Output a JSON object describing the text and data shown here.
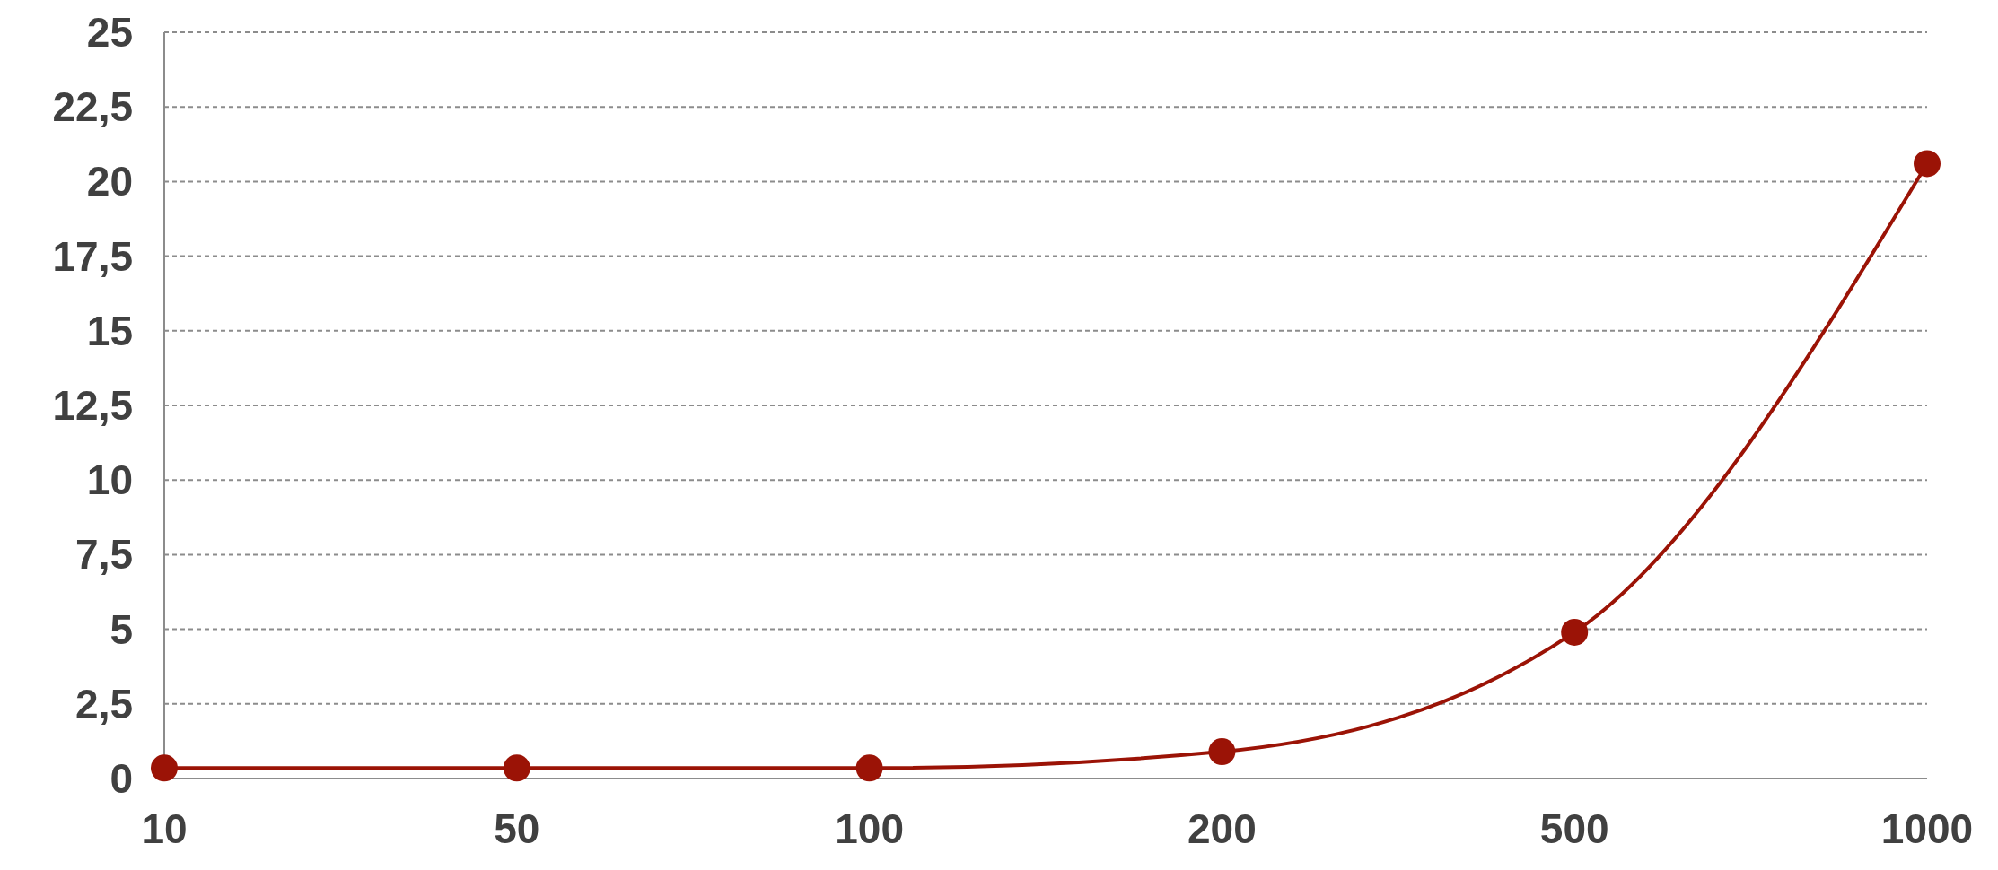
{
  "chart_data": {
    "type": "line",
    "categories": [
      "10",
      "50",
      "100",
      "200",
      "500",
      "1000"
    ],
    "series": [
      {
        "color": "#9b1306",
        "values": [
          0.35,
          0.35,
          0.35,
          0.9,
          4.9,
          20.6
        ]
      }
    ],
    "ylim": [
      0,
      25
    ],
    "yticks": [
      0,
      {
        "value": 2.5,
        "label": "2,5"
      },
      5,
      {
        "value": 7.5,
        "label": "7,5"
      },
      10,
      {
        "value": 12.5,
        "label": "12,5"
      },
      15,
      {
        "value": 17.5,
        "label": "17,5"
      },
      20,
      {
        "value": 22.5,
        "label": "22,5"
      },
      25
    ],
    "grid": "y",
    "marker": "circle",
    "line_style": "solid"
  }
}
